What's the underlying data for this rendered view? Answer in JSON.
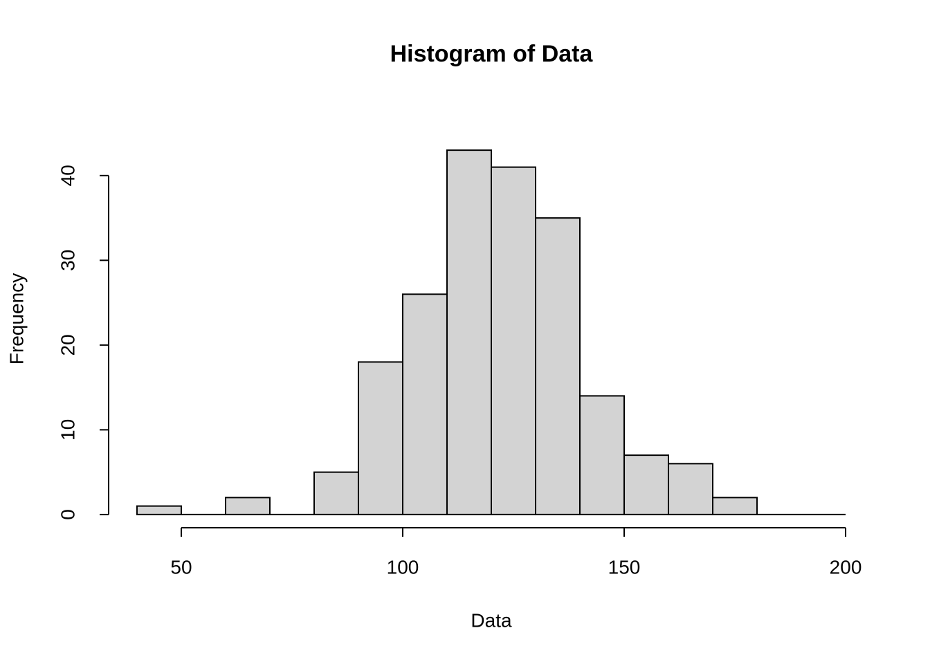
{
  "chart_data": {
    "type": "histogram",
    "title": "Histogram of Data",
    "x_label": "Data",
    "y_label": "Frequency",
    "bins": [
      40,
      50,
      60,
      70,
      80,
      90,
      100,
      110,
      120,
      130,
      140,
      150,
      160,
      170,
      180,
      190,
      200
    ],
    "counts": [
      1,
      0,
      2,
      0,
      5,
      18,
      26,
      43,
      41,
      35,
      14,
      7,
      6,
      2,
      0,
      0
    ],
    "color": "#d3d3d3",
    "xlim": [
      33.6,
      206.4
    ],
    "ylim": [
      -1.72,
      44.72
    ],
    "xticks": [
      50,
      100,
      150,
      200
    ],
    "yticks": [
      0,
      10,
      20,
      30,
      40
    ]
  }
}
